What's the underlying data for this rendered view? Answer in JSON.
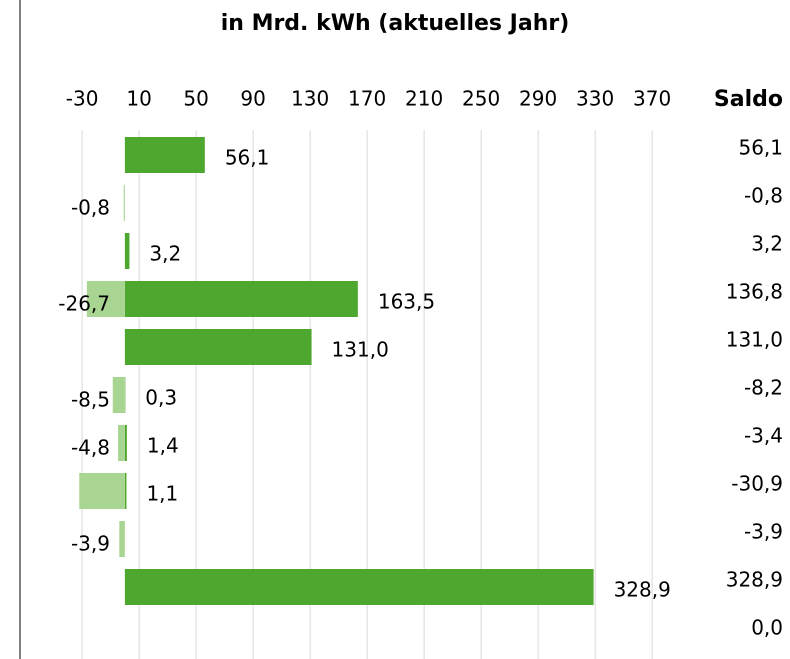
{
  "chart_data": {
    "type": "bar",
    "title": "in Mrd. kWh (aktuelles Jahr)",
    "orientation": "horizontal",
    "categories": [
      null,
      null,
      null,
      null,
      null,
      null,
      null,
      null,
      null,
      null,
      null
    ],
    "series": [
      {
        "color": "#4ea72e",
        "values": [
          56.1,
          null,
          3.2,
          163.5,
          131.0,
          0.3,
          1.4,
          1.1,
          null,
          328.9,
          null
        ],
        "value_labels": [
          "56,1",
          null,
          "3,2",
          "163,5",
          "131,0",
          "0,3",
          "1,4",
          "1,1",
          null,
          "328,9",
          null
        ]
      },
      {
        "color": "#a9d592",
        "values": [
          null,
          -0.8,
          null,
          -26.7,
          null,
          -8.5,
          -4.8,
          -32.0,
          -3.9,
          null,
          null
        ],
        "value_labels": [
          null,
          "-0,8",
          null,
          "-26,7",
          null,
          "-8,5",
          "-4,8",
          null,
          "-3,9",
          null,
          null
        ]
      }
    ],
    "saldo": {
      "label": "Saldo",
      "values": [
        56.1,
        -0.8,
        3.2,
        136.8,
        131.0,
        -8.2,
        -3.4,
        -30.9,
        -3.9,
        328.9,
        0.0
      ],
      "value_labels": [
        "56,1",
        "-0,8",
        "3,2",
        "136,8",
        "131,0",
        "-8,2",
        "-3,4",
        "-30,9",
        "-3,9",
        "328,9",
        "0,0"
      ]
    },
    "xlim": [
      -35,
      380
    ],
    "xticks": [
      -30,
      10,
      50,
      90,
      130,
      170,
      210,
      250,
      290,
      330,
      370
    ],
    "grid": true
  }
}
